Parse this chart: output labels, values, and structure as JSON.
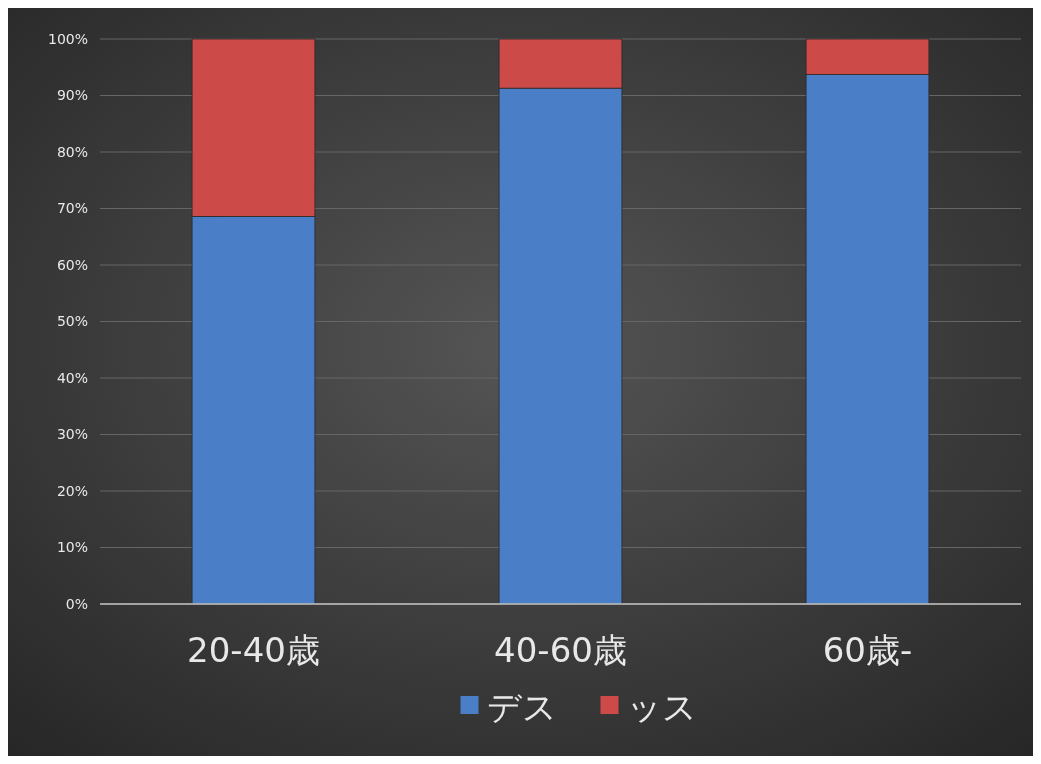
{
  "chart_data": {
    "type": "bar",
    "stacked": true,
    "categories": [
      "20-40歳",
      "40-60歳",
      "60歳-"
    ],
    "series": [
      {
        "name": "デス",
        "color": "#4a7fc8",
        "values": [
          68.6,
          91.3,
          93.7
        ]
      },
      {
        "name": "ッス",
        "color": "#cc4a47",
        "values": [
          31.4,
          8.7,
          6.3
        ]
      }
    ],
    "ylim": [
      0,
      100
    ],
    "yticks": [
      {
        "value": 0,
        "label": "0%"
      },
      {
        "value": 10,
        "label": "10%"
      },
      {
        "value": 20,
        "label": "20%"
      },
      {
        "value": 30,
        "label": "30%"
      },
      {
        "value": 40,
        "label": "40%"
      },
      {
        "value": 50,
        "label": "50%"
      },
      {
        "value": 60,
        "label": "60%"
      },
      {
        "value": 70,
        "label": "70%"
      },
      {
        "value": 80,
        "label": "80%"
      },
      {
        "value": 90,
        "label": "90%"
      },
      {
        "value": 100,
        "label": "100%"
      }
    ],
    "grid": "y",
    "legend": "bottom"
  }
}
